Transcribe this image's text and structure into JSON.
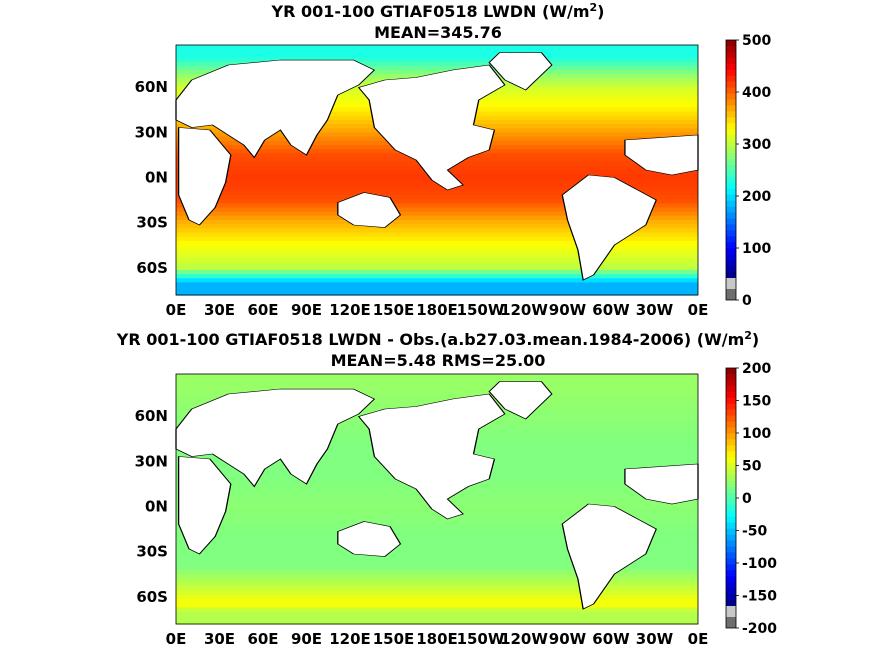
{
  "chart_data": [
    {
      "type": "heatmap",
      "title_line1": "YR 001-100 GTIAF0518 LWDN (W/m",
      "title_sup": "2",
      "title_close": ")",
      "subtitle": "MEAN=345.76",
      "variable": "LWDN",
      "units": "W/m2",
      "mean": 345.76,
      "x_ticks": [
        "0E",
        "30E",
        "60E",
        "90E",
        "120E",
        "150E",
        "180E",
        "150W",
        "120W",
        "90W",
        "60W",
        "30W",
        "0E"
      ],
      "y_ticks": [
        "60N",
        "30N",
        "0N",
        "30S",
        "60S"
      ],
      "colorbar": {
        "min": 0,
        "max": 500,
        "ticks": [
          "500",
          "400",
          "300",
          "200",
          "100",
          "0"
        ]
      },
      "zonal_profile": [
        {
          "lat": 80,
          "value": 200
        },
        {
          "lat": 70,
          "value": 250
        },
        {
          "lat": 60,
          "value": 290
        },
        {
          "lat": 45,
          "value": 320
        },
        {
          "lat": 30,
          "value": 360
        },
        {
          "lat": 15,
          "value": 400
        },
        {
          "lat": 0,
          "value": 410
        },
        {
          "lat": -15,
          "value": 400
        },
        {
          "lat": -30,
          "value": 350
        },
        {
          "lat": -45,
          "value": 310
        },
        {
          "lat": -60,
          "value": 280
        },
        {
          "lat": -70,
          "value": 150
        }
      ]
    },
    {
      "type": "heatmap",
      "title_line1": "YR 001-100 GTIAF0518 LWDN - Obs.(a.b27.03.mean.1984-2006) (W/m",
      "title_sup": "2",
      "title_close": ")",
      "subtitle": "MEAN=5.48 RMS=25.00",
      "variable": "LWDN - Obs.",
      "units": "W/m2",
      "mean": 5.48,
      "rms": 25.0,
      "x_ticks": [
        "0E",
        "30E",
        "60E",
        "90E",
        "120E",
        "150E",
        "180E",
        "150W",
        "120W",
        "90W",
        "60W",
        "30W",
        "0E"
      ],
      "y_ticks": [
        "60N",
        "30N",
        "0N",
        "30S",
        "60S"
      ],
      "colorbar": {
        "min": -200,
        "max": 200,
        "ticks": [
          "200",
          "150",
          "100",
          "50",
          "0",
          "-50",
          "-100",
          "-150",
          "-200"
        ]
      },
      "zonal_profile": [
        {
          "lat": 80,
          "value": 10
        },
        {
          "lat": 60,
          "value": 5
        },
        {
          "lat": 40,
          "value": 0
        },
        {
          "lat": 20,
          "value": 0
        },
        {
          "lat": 0,
          "value": 5
        },
        {
          "lat": -20,
          "value": 0
        },
        {
          "lat": -40,
          "value": 0
        },
        {
          "lat": -55,
          "value": 30
        },
        {
          "lat": -65,
          "value": 50
        },
        {
          "lat": -70,
          "value": 20
        }
      ]
    }
  ],
  "colors": {
    "ocean_low": "#1a1aff",
    "ocean_mid": "#35e6c8",
    "ocean_high": "#f08a1e",
    "land": "#ffffff",
    "coast": "#000000",
    "missing": "#6e6e6e"
  }
}
